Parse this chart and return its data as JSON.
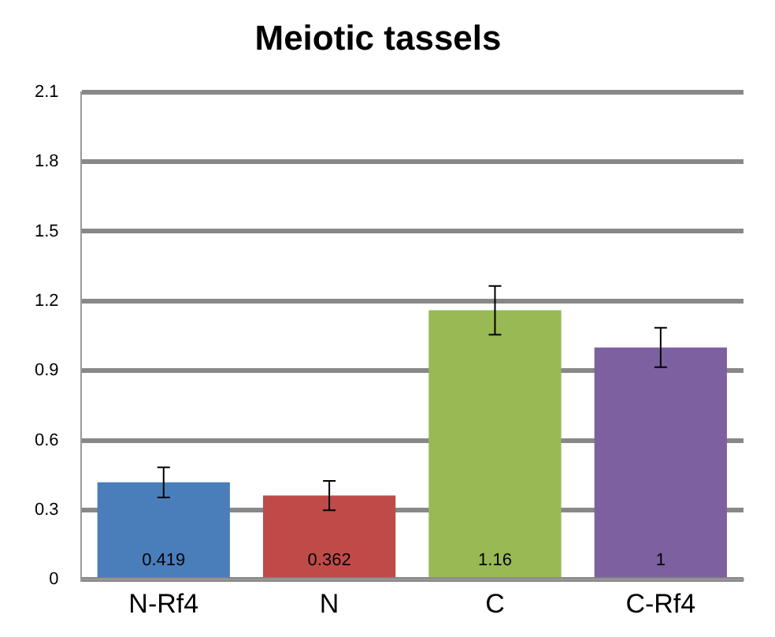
{
  "chart_data": {
    "type": "bar",
    "title": "Meiotic tassels",
    "categories": [
      "N-Rf4",
      "N",
      "C",
      "C-Rf4"
    ],
    "values": [
      0.419,
      0.362,
      1.16,
      1
    ],
    "colors": [
      "#4a7ebb",
      "#be4b48",
      "#98b954",
      "#7d60a0"
    ],
    "errors": [
      0.065,
      0.063,
      0.105,
      0.085
    ],
    "data_labels": true,
    "ylim": [
      0,
      2.1
    ],
    "yticks": [
      0,
      0.3,
      0.6,
      0.9,
      1.2,
      1.5,
      1.8,
      2.1
    ],
    "grid": "y"
  }
}
